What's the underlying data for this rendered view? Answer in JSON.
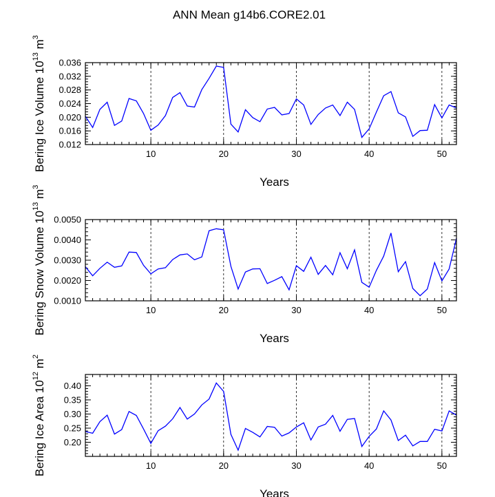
{
  "title": "ANN Mean g14b6.CORE2.01",
  "chart_data": [
    {
      "type": "line",
      "ylabel": "Bering Ice Volume 10",
      "ylabel_exp": "13",
      "ylabel_unit": " m",
      "ylabel_unit_exp": "3",
      "xlabel": "Years",
      "xlim": [
        1,
        52
      ],
      "ylim": [
        0.012,
        0.036
      ],
      "yticks": [
        "0.012",
        "0.016",
        "0.020",
        "0.024",
        "0.028",
        "0.032",
        "0.036"
      ],
      "xticks": [
        "10",
        "20",
        "30",
        "40",
        "50"
      ],
      "grid": "vertical dashed at x=10,20,30,40,50",
      "series_color": "#0000ff",
      "x": [
        1,
        2,
        3,
        4,
        5,
        6,
        7,
        8,
        9,
        10,
        11,
        12,
        13,
        14,
        15,
        16,
        17,
        18,
        19,
        20,
        21,
        22,
        23,
        24,
        25,
        26,
        27,
        28,
        29,
        30,
        31,
        32,
        33,
        34,
        35,
        36,
        37,
        38,
        39,
        40,
        41,
        42,
        43,
        44,
        45,
        46,
        47,
        48,
        49,
        50,
        51,
        52
      ],
      "values": [
        0.0203,
        0.017,
        0.0223,
        0.0244,
        0.0176,
        0.0189,
        0.0255,
        0.0248,
        0.0211,
        0.0162,
        0.0177,
        0.0205,
        0.0258,
        0.0272,
        0.0233,
        0.023,
        0.0281,
        0.0314,
        0.035,
        0.0346,
        0.018,
        0.0157,
        0.0222,
        0.0199,
        0.0187,
        0.0224,
        0.0229,
        0.0207,
        0.0211,
        0.0254,
        0.0236,
        0.0179,
        0.0208,
        0.0227,
        0.0236,
        0.0205,
        0.0244,
        0.0223,
        0.0141,
        0.0166,
        0.0215,
        0.0263,
        0.0275,
        0.0213,
        0.0201,
        0.0144,
        0.0161,
        0.0162,
        0.0237,
        0.0198,
        0.0236,
        0.0227
      ]
    },
    {
      "type": "line",
      "ylabel": "Bering Snow Volume 10",
      "ylabel_exp": "13",
      "ylabel_unit": " m",
      "ylabel_unit_exp": "3",
      "xlabel": "Years",
      "xlim": [
        1,
        52
      ],
      "ylim": [
        0.001,
        0.005
      ],
      "yticks": [
        "0.0010",
        "0.0020",
        "0.0030",
        "0.0040",
        "0.0050"
      ],
      "xticks": [
        "10",
        "20",
        "30",
        "40",
        "50"
      ],
      "grid": "vertical dashed at x=10,20,30,40,50",
      "series_color": "#0000ff",
      "x": [
        1,
        2,
        3,
        4,
        5,
        6,
        7,
        8,
        9,
        10,
        11,
        12,
        13,
        14,
        15,
        16,
        17,
        18,
        19,
        20,
        21,
        22,
        23,
        24,
        25,
        26,
        27,
        28,
        29,
        30,
        31,
        32,
        33,
        34,
        35,
        36,
        37,
        38,
        39,
        40,
        41,
        42,
        43,
        44,
        45,
        46,
        47,
        48,
        49,
        50,
        51,
        52
      ],
      "values": [
        0.00268,
        0.00223,
        0.0026,
        0.0029,
        0.00265,
        0.00272,
        0.0034,
        0.00338,
        0.00275,
        0.00233,
        0.00257,
        0.00263,
        0.00303,
        0.00326,
        0.00331,
        0.00302,
        0.00316,
        0.00445,
        0.00455,
        0.0045,
        0.0027,
        0.00158,
        0.00242,
        0.00257,
        0.00258,
        0.00185,
        0.00201,
        0.00219,
        0.00154,
        0.00273,
        0.00245,
        0.00315,
        0.0023,
        0.00274,
        0.00228,
        0.00337,
        0.00258,
        0.00351,
        0.00191,
        0.00167,
        0.0025,
        0.0032,
        0.00434,
        0.00243,
        0.00293,
        0.00161,
        0.00125,
        0.00158,
        0.00288,
        0.00198,
        0.00257,
        0.00408
      ]
    },
    {
      "type": "line",
      "ylabel": "Bering Ice Area 10",
      "ylabel_exp": "12",
      "ylabel_unit": " m",
      "ylabel_unit_exp": "2",
      "xlabel": "Years",
      "xlim": [
        1,
        52
      ],
      "ylim": [
        0.15,
        0.44
      ],
      "yticks": [
        "0.20",
        "0.25",
        "0.30",
        "0.35",
        "0.40"
      ],
      "xticks": [
        "10",
        "20",
        "30",
        "40",
        "50"
      ],
      "grid": "vertical dashed at x=10,20,30,40,50",
      "series_color": "#0000ff",
      "x": [
        1,
        2,
        3,
        4,
        5,
        6,
        7,
        8,
        9,
        10,
        11,
        12,
        13,
        14,
        15,
        16,
        17,
        18,
        19,
        20,
        21,
        22,
        23,
        24,
        25,
        26,
        27,
        28,
        29,
        30,
        31,
        32,
        33,
        34,
        35,
        36,
        37,
        38,
        39,
        40,
        41,
        42,
        43,
        44,
        45,
        46,
        47,
        48,
        49,
        50,
        51,
        52
      ],
      "values": [
        0.238,
        0.232,
        0.273,
        0.296,
        0.229,
        0.245,
        0.309,
        0.295,
        0.247,
        0.196,
        0.241,
        0.257,
        0.283,
        0.323,
        0.282,
        0.3,
        0.332,
        0.353,
        0.41,
        0.38,
        0.228,
        0.172,
        0.249,
        0.235,
        0.219,
        0.256,
        0.253,
        0.222,
        0.233,
        0.254,
        0.269,
        0.208,
        0.254,
        0.264,
        0.295,
        0.239,
        0.281,
        0.284,
        0.185,
        0.221,
        0.247,
        0.311,
        0.279,
        0.206,
        0.225,
        0.187,
        0.203,
        0.203,
        0.246,
        0.24,
        0.311,
        0.296
      ]
    }
  ]
}
